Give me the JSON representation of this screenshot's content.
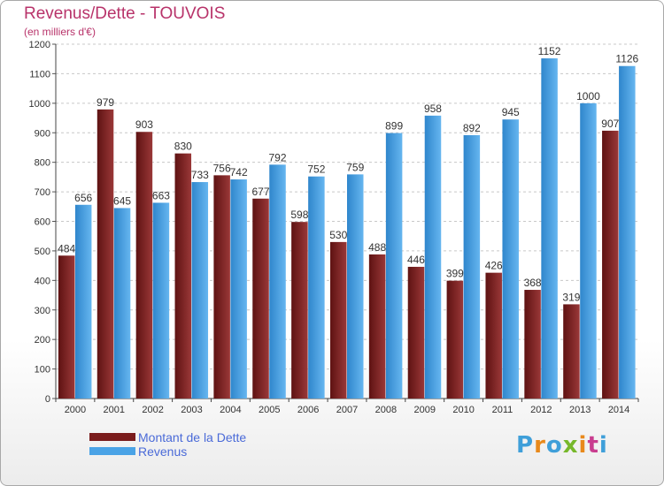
{
  "header": {
    "title": "Revenus/Dette - TOUVOIS",
    "subtitle": "(en milliers d'€)"
  },
  "legend": [
    {
      "label": "Montant de la Dette",
      "color": "#7a1c1c"
    },
    {
      "label": "Revenus",
      "color": "#4aa3e6"
    }
  ],
  "logo": {
    "text": "Proxiti",
    "letter_colors": [
      "#3f9fd9",
      "#e8891b",
      "#3f9fd9",
      "#77b82b",
      "#e8891b",
      "#c93d8f",
      "#3f9fd9"
    ]
  },
  "chart_data": {
    "type": "bar",
    "title": "Revenus/Dette - TOUVOIS",
    "subtitle": "(en milliers d'€)",
    "xlabel": "",
    "ylabel": "",
    "categories": [
      "2000",
      "2001",
      "2002",
      "2003",
      "2004",
      "2005",
      "2006",
      "2007",
      "2008",
      "2009",
      "2010",
      "2011",
      "2012",
      "2013",
      "2014"
    ],
    "series": [
      {
        "name": "Montant de la Dette",
        "color": "#7a1c1c",
        "values": [
          484,
          979,
          903,
          830,
          756,
          677,
          598,
          530,
          488,
          446,
          399,
          426,
          368,
          319,
          907
        ]
      },
      {
        "name": "Revenus",
        "color": "#4aa3e6",
        "values": [
          656,
          645,
          663,
          733,
          742,
          792,
          752,
          759,
          899,
          958,
          892,
          945,
          1152,
          1000,
          1126
        ]
      }
    ],
    "ylim": [
      0,
      1200
    ],
    "yticks": [
      0,
      100,
      200,
      300,
      400,
      500,
      600,
      700,
      800,
      900,
      1000,
      1100,
      1200
    ],
    "grid": true,
    "legend_position": "bottom-left"
  }
}
